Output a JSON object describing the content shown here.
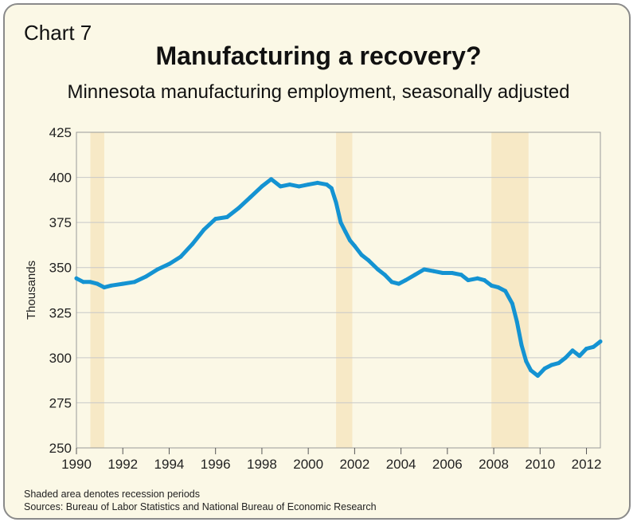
{
  "header": {
    "chart_label": "Chart 7",
    "title": "Manufacturing a recovery?",
    "subtitle": "Minnesota manufacturing employment, seasonally adjusted"
  },
  "notes": {
    "note": "Shaded area denotes recession periods",
    "sources": "Sources: Bureau of Labor Statistics and National Bureau of Economic Research"
  },
  "colors": {
    "line": "#1493d2",
    "recession": "#f7e9c6",
    "grid": "#c8c8c8",
    "background": "#fbf8e6"
  },
  "chart_data": {
    "type": "line",
    "title": "Manufacturing a recovery?",
    "subtitle": "Minnesota manufacturing employment, seasonally adjusted",
    "xlabel": "",
    "ylabel": "Thousands",
    "xlim": [
      1990,
      2012.6
    ],
    "ylim": [
      250,
      425
    ],
    "grid": true,
    "x_ticks": [
      1990,
      1992,
      1994,
      1996,
      1998,
      2000,
      2002,
      2004,
      2006,
      2008,
      2010,
      2012
    ],
    "y_ticks": [
      250,
      275,
      300,
      325,
      350,
      375,
      400,
      425
    ],
    "recessions": [
      [
        1990.6,
        1991.2
      ],
      [
        2001.2,
        2001.9
      ],
      [
        2007.9,
        2009.5
      ]
    ],
    "series": [
      {
        "x": [
          1990.0,
          1990.3,
          1990.6,
          1990.9,
          1991.2,
          1991.5,
          1992.0,
          1992.5,
          1993.0,
          1993.5,
          1994.0,
          1994.5,
          1995.0,
          1995.5,
          1996.0,
          1996.5,
          1997.0,
          1997.5,
          1998.0,
          1998.4,
          1998.8,
          1999.2,
          1999.6,
          2000.0,
          2000.4,
          2000.8,
          2001.0,
          2001.2,
          2001.4,
          2001.6,
          2001.8,
          2002.0,
          2002.3,
          2002.6,
          2003.0,
          2003.3,
          2003.6,
          2003.9,
          2004.2,
          2004.6,
          2005.0,
          2005.4,
          2005.8,
          2006.2,
          2006.6,
          2006.9,
          2007.3,
          2007.6,
          2007.9,
          2008.2,
          2008.5,
          2008.8,
          2009.0,
          2009.2,
          2009.4,
          2009.6,
          2009.9,
          2010.2,
          2010.5,
          2010.8,
          2011.1,
          2011.4,
          2011.7,
          2012.0,
          2012.3,
          2012.6
        ],
        "values": [
          344,
          342,
          342,
          341,
          339,
          340,
          341,
          342,
          345,
          349,
          352,
          356,
          363,
          371,
          377,
          378,
          383,
          389,
          395,
          399,
          395,
          396,
          395,
          396,
          397,
          396,
          394,
          386,
          375,
          370,
          365,
          362,
          357,
          354,
          349,
          346,
          342,
          341,
          343,
          346,
          349,
          348,
          347,
          347,
          346,
          343,
          344,
          343,
          340,
          339,
          337,
          330,
          320,
          307,
          298,
          293,
          290,
          294,
          296,
          297,
          300,
          304,
          301,
          305,
          306,
          309
        ]
      }
    ]
  }
}
